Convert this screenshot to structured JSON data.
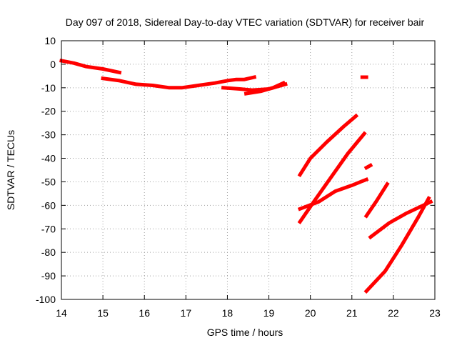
{
  "chart_data": {
    "type": "scatter",
    "title": "Day 097 of 2018, Sidereal Day-to-day VTEC variation (SDTVAR) for receiver bair",
    "xlabel": "GPS time / hours",
    "ylabel": "SDTVAR / TECUs",
    "xlim": [
      14,
      23
    ],
    "ylim": [
      -100,
      10
    ],
    "x_ticks": [
      14,
      15,
      16,
      17,
      18,
      19,
      20,
      21,
      22,
      23
    ],
    "y_ticks": [
      10,
      0,
      -10,
      -20,
      -30,
      -40,
      -50,
      -60,
      -70,
      -80,
      -90,
      -100
    ],
    "grid": true,
    "legend": "none",
    "color": "#ff0000",
    "series": [
      {
        "values": [
          [
            14.0,
            1.5
          ],
          [
            14.3,
            0.5
          ],
          [
            14.6,
            -1.0
          ],
          [
            15.0,
            -2.0
          ],
          [
            15.4,
            -3.5
          ]
        ]
      },
      {
        "values": [
          [
            15.0,
            -6.0
          ],
          [
            15.4,
            -7.0
          ],
          [
            15.8,
            -8.5
          ],
          [
            16.2,
            -9.0
          ],
          [
            16.6,
            -10.0
          ],
          [
            16.9,
            -10.0
          ],
          [
            17.3,
            -9.0
          ],
          [
            17.7,
            -8.0
          ],
          [
            18.0,
            -7.0
          ],
          [
            18.2,
            -6.5
          ],
          [
            18.4,
            -6.5
          ],
          [
            18.65,
            -5.5
          ]
        ]
      },
      {
        "values": [
          [
            17.9,
            -10.0
          ],
          [
            18.3,
            -10.5
          ],
          [
            18.6,
            -11.0
          ],
          [
            19.0,
            -10.5
          ],
          [
            19.4,
            -8.5
          ]
        ]
      },
      {
        "values": [
          [
            18.45,
            -12.5
          ],
          [
            18.8,
            -11.5
          ],
          [
            19.1,
            -10.0
          ],
          [
            19.35,
            -8.0
          ]
        ]
      },
      {
        "values": [
          [
            21.25,
            -5.5
          ],
          [
            21.35,
            -5.5
          ]
        ]
      },
      {
        "values": [
          [
            19.75,
            -47.0
          ],
          [
            20.0,
            -40.0
          ],
          [
            20.4,
            -33.0
          ],
          [
            20.8,
            -26.5
          ],
          [
            21.1,
            -22.0
          ]
        ]
      },
      {
        "values": [
          [
            19.75,
            -67.0
          ],
          [
            20.1,
            -58.0
          ],
          [
            20.5,
            -48.0
          ],
          [
            20.9,
            -38.0
          ],
          [
            21.3,
            -29.5
          ]
        ]
      },
      {
        "values": [
          [
            19.75,
            -61.5
          ],
          [
            20.2,
            -58.5
          ],
          [
            20.6,
            -54.0
          ],
          [
            21.0,
            -51.5
          ],
          [
            21.35,
            -49.0
          ]
        ]
      },
      {
        "values": [
          [
            21.35,
            -44.0
          ],
          [
            21.45,
            -43.0
          ]
        ]
      },
      {
        "values": [
          [
            21.35,
            -64.5
          ],
          [
            21.6,
            -58.0
          ],
          [
            21.85,
            -51.0
          ]
        ]
      },
      {
        "values": [
          [
            21.35,
            -96.5
          ],
          [
            21.8,
            -88.0
          ],
          [
            22.2,
            -77.0
          ],
          [
            22.6,
            -65.0
          ],
          [
            22.85,
            -57.0
          ]
        ]
      },
      {
        "values": [
          [
            21.45,
            -73.5
          ],
          [
            21.9,
            -67.5
          ],
          [
            22.3,
            -63.5
          ],
          [
            22.9,
            -58.5
          ]
        ]
      }
    ]
  }
}
